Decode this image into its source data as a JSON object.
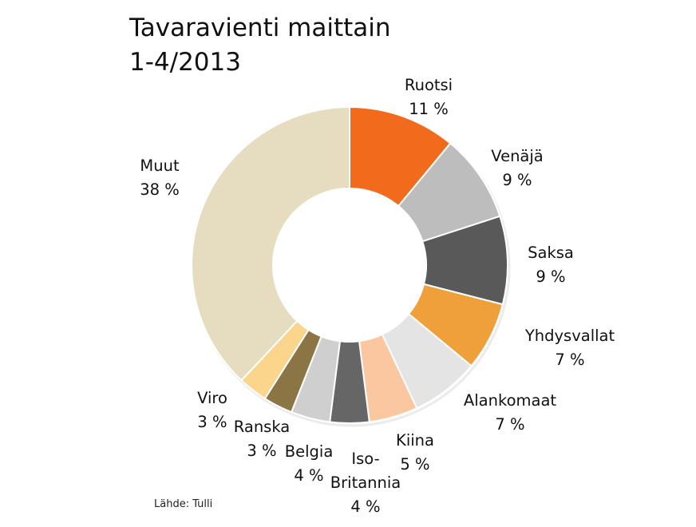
{
  "title_line1": "Tavaravienti maittain",
  "title_line2": "1-4/2013",
  "source": "Lähde: Tulli",
  "chart_data": {
    "type": "pie",
    "subtype": "donut",
    "title": "Tavaravienti maittain 1-4/2013",
    "unit": "%",
    "slices": [
      {
        "name": "Ruotsi",
        "label": "Ruotsi",
        "value": 11,
        "value_label": "11 %",
        "color": "#F26A1B"
      },
      {
        "name": "Venäjä",
        "label": "Venäjä",
        "value": 9,
        "value_label": "9 %",
        "color": "#BDBDBD"
      },
      {
        "name": "Saksa",
        "label": "Saksa",
        "value": 9,
        "value_label": "9 %",
        "color": "#595959"
      },
      {
        "name": "Yhdysvallat",
        "label": "Yhdysvallat",
        "value": 7,
        "value_label": "7 %",
        "color": "#F0A03A"
      },
      {
        "name": "Alankomaat",
        "label": "Alankomaat",
        "value": 7,
        "value_label": "7 %",
        "color": "#E4E4E4"
      },
      {
        "name": "Kiina",
        "label": "Kiina",
        "value": 5,
        "value_label": "5 %",
        "color": "#FAC7A0"
      },
      {
        "name": "Iso-Britannia",
        "label": "Iso-\nBritannia",
        "value": 4,
        "value_label": "4 %",
        "color": "#666666"
      },
      {
        "name": "Belgia",
        "label": "Belgia",
        "value": 4,
        "value_label": "4 %",
        "color": "#CFCFCF"
      },
      {
        "name": "Ranska",
        "label": "Ranska",
        "value": 3,
        "value_label": "3 %",
        "color": "#8C7545"
      },
      {
        "name": "Viro",
        "label": "Viro",
        "value": 3,
        "value_label": "3 %",
        "color": "#FBD58C"
      },
      {
        "name": "Muut",
        "label": "Muut",
        "value": 38,
        "value_label": "38 %",
        "color": "#E6DCC0"
      }
    ]
  }
}
